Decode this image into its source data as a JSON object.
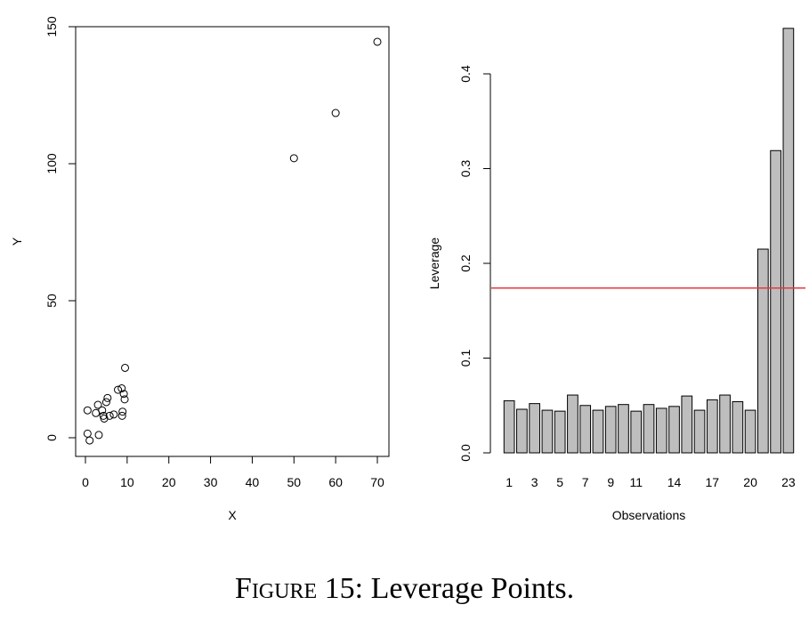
{
  "figure_caption": {
    "label": "Figure 15:",
    "text": "Leverage Points."
  },
  "colors": {
    "bar_fill": "#bebebe",
    "threshold_line": "#e8383d",
    "axis": "#000000"
  },
  "chart_data": [
    {
      "type": "scatter",
      "xlabel": "X",
      "ylabel": "Y",
      "xlim": [
        -2,
        72
      ],
      "ylim": [
        -6,
        150
      ],
      "xticks": [
        0,
        10,
        20,
        30,
        40,
        50,
        60,
        70
      ],
      "yticks": [
        0,
        50,
        100,
        150
      ],
      "box": true,
      "marker": "open-circle",
      "points": [
        {
          "x": 0.5,
          "y": 10
        },
        {
          "x": 0.5,
          "y": 1.5
        },
        {
          "x": 1.0,
          "y": -1
        },
        {
          "x": 2.5,
          "y": 9
        },
        {
          "x": 3.0,
          "y": 12
        },
        {
          "x": 3.2,
          "y": 1
        },
        {
          "x": 4.0,
          "y": 10
        },
        {
          "x": 4.3,
          "y": 8
        },
        {
          "x": 4.5,
          "y": 7
        },
        {
          "x": 5.0,
          "y": 13
        },
        {
          "x": 5.3,
          "y": 14.5
        },
        {
          "x": 5.8,
          "y": 8
        },
        {
          "x": 6.8,
          "y": 8.5
        },
        {
          "x": 7.8,
          "y": 17.5
        },
        {
          "x": 8.7,
          "y": 18
        },
        {
          "x": 8.8,
          "y": 8
        },
        {
          "x": 8.9,
          "y": 9.5
        },
        {
          "x": 9.2,
          "y": 16
        },
        {
          "x": 9.4,
          "y": 14
        },
        {
          "x": 9.5,
          "y": 25.5
        },
        {
          "x": 50,
          "y": 102
        },
        {
          "x": 60,
          "y": 118.5
        },
        {
          "x": 70,
          "y": 144.5
        }
      ]
    },
    {
      "type": "bar",
      "xlabel": "Observations",
      "ylabel": "Leverage",
      "ylim": [
        0,
        0.45
      ],
      "yticks": [
        0.0,
        0.1,
        0.2,
        0.3,
        0.4
      ],
      "ytick_labels": [
        "0.0",
        "0.1",
        "0.2",
        "0.3",
        "0.4"
      ],
      "categories": [
        "1",
        "2",
        "3",
        "4",
        "5",
        "6",
        "7",
        "8",
        "9",
        "10",
        "11",
        "12",
        "13",
        "14",
        "15",
        "16",
        "17",
        "18",
        "19",
        "20",
        "21",
        "22",
        "23"
      ],
      "shown_category_labels": [
        "1",
        "3",
        "5",
        "7",
        "9",
        "11",
        "14",
        "17",
        "20",
        "23"
      ],
      "values": [
        0.055,
        0.046,
        0.052,
        0.045,
        0.044,
        0.061,
        0.05,
        0.045,
        0.049,
        0.051,
        0.044,
        0.051,
        0.047,
        0.049,
        0.06,
        0.045,
        0.056,
        0.061,
        0.054,
        0.045,
        0.215,
        0.319,
        0.448
      ],
      "reference_line": {
        "y": 0.174,
        "orientation": "horizontal"
      }
    }
  ]
}
